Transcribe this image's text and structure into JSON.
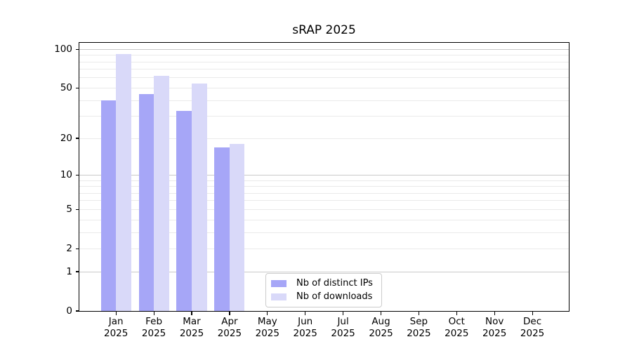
{
  "title": "sRAP 2025",
  "chart_data": {
    "type": "bar",
    "title": "sRAP 2025",
    "yscale": "log1p",
    "ylim": [
      0,
      110
    ],
    "yticks": [
      0,
      1,
      2,
      5,
      10,
      20,
      50,
      100
    ],
    "grid_major": [
      1,
      10,
      100
    ],
    "grid_minor": [
      2,
      3,
      4,
      5,
      6,
      7,
      8,
      9,
      20,
      30,
      40,
      50,
      60,
      70,
      80,
      90
    ],
    "grid": "horizontal",
    "categories": [
      "Jan",
      "Feb",
      "Mar",
      "Apr",
      "May",
      "Jun",
      "Jul",
      "Aug",
      "Sep",
      "Oct",
      "Nov",
      "Dec"
    ],
    "category_year": "2025",
    "legend_position": "bottom-center",
    "series": [
      {
        "name": "Nb of distinct IPs",
        "color": "#a6a6f7",
        "values": [
          40,
          45,
          33,
          17,
          0,
          0,
          0,
          0,
          0,
          0,
          0,
          0
        ]
      },
      {
        "name": "Nb of downloads",
        "color": "#d9d9f9",
        "values": [
          92,
          62,
          54,
          18,
          0,
          0,
          0,
          0,
          0,
          0,
          0,
          0
        ]
      }
    ]
  },
  "colors": {
    "background": "#ffffff",
    "axis": "#000000",
    "grid_major": "#c9c9c9",
    "grid_minor": "#eaeaea",
    "legend_border": "#cccccc"
  }
}
